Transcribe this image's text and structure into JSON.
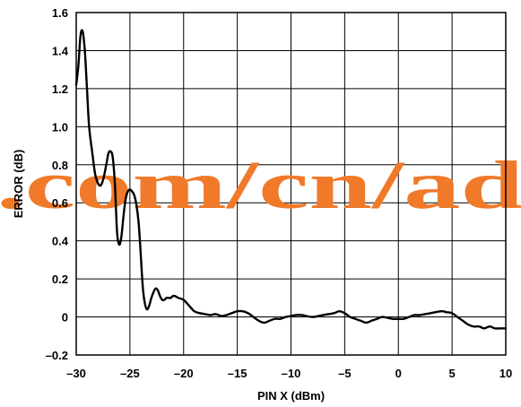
{
  "chart_data": {
    "type": "line",
    "xlabel": "PIN X (dBm)",
    "ylabel": "ERROR (dB)",
    "xlim": [
      -30,
      10
    ],
    "ylim": [
      -0.2,
      1.6
    ],
    "xticks": [
      -30,
      -25,
      -20,
      -15,
      -10,
      -5,
      0,
      5,
      10
    ],
    "xtick_labels": [
      "–30",
      "–25",
      "–20",
      "–15",
      "–10",
      "–5",
      "0",
      "5",
      "10"
    ],
    "yticks": [
      -0.2,
      0,
      0.2,
      0.4,
      0.6,
      0.8,
      1.0,
      1.2,
      1.4,
      1.6
    ],
    "ytick_labels": [
      "–0.2",
      "0",
      "0.2",
      "0.4",
      "0.6",
      "0.8",
      "1.0",
      "1.2",
      "1.4",
      "1.6"
    ],
    "grid": true,
    "series": [
      {
        "x": [
          -30,
          -29.8,
          -29.6,
          -29.4,
          -29.2,
          -29.0,
          -28.8,
          -28.5,
          -28.2,
          -27.8,
          -27.5,
          -27.2,
          -27.0,
          -26.8,
          -26.6,
          -26.4,
          -26.2,
          -26.0,
          -25.8,
          -25.6,
          -25.4,
          -25.2,
          -25.0,
          -24.8,
          -24.6,
          -24.4,
          -24.2,
          -24.0,
          -23.8,
          -23.6,
          -23.4,
          -23.2,
          -23.0,
          -22.8,
          -22.6,
          -22.4,
          -22.2,
          -22.0,
          -21.8,
          -21.6,
          -21.4,
          -21.2,
          -21.0,
          -20.8,
          -20.5,
          -20.0,
          -19.5,
          -19.0,
          -18.5,
          -18.0,
          -17.5,
          -17.0,
          -16.5,
          -16.0,
          -15.5,
          -15.0,
          -14.5,
          -14.0,
          -13.5,
          -13.0,
          -12.5,
          -12.0,
          -11.5,
          -11.0,
          -10.5,
          -10.0,
          -9.5,
          -9.0,
          -8.0,
          -7.0,
          -6.0,
          -5.5,
          -5.0,
          -4.5,
          -4.0,
          -3.5,
          -3.0,
          -2.5,
          -2.0,
          -1.5,
          -1.0,
          -0.5,
          0.0,
          0.5,
          1.0,
          1.5,
          2.0,
          3.0,
          4.0,
          4.5,
          5.0,
          5.5,
          6.0,
          6.5,
          7.0,
          7.5,
          8.0,
          8.5,
          9.0,
          9.5,
          10.0
        ],
        "y": [
          1.22,
          1.32,
          1.48,
          1.5,
          1.4,
          1.2,
          1.0,
          0.86,
          0.74,
          0.69,
          0.72,
          0.8,
          0.86,
          0.87,
          0.84,
          0.7,
          0.45,
          0.38,
          0.42,
          0.53,
          0.62,
          0.66,
          0.67,
          0.66,
          0.64,
          0.59,
          0.5,
          0.34,
          0.16,
          0.07,
          0.04,
          0.06,
          0.1,
          0.13,
          0.15,
          0.14,
          0.11,
          0.09,
          0.09,
          0.1,
          0.1,
          0.1,
          0.11,
          0.11,
          0.1,
          0.09,
          0.06,
          0.03,
          0.02,
          0.015,
          0.01,
          0.015,
          0.005,
          0.01,
          0.02,
          0.03,
          0.03,
          0.02,
          0.0,
          -0.02,
          -0.03,
          -0.02,
          -0.01,
          -0.01,
          0.0,
          0.005,
          0.01,
          0.01,
          0.0,
          0.01,
          0.02,
          0.03,
          0.02,
          0.0,
          -0.01,
          -0.02,
          -0.03,
          -0.02,
          -0.01,
          0.0,
          -0.005,
          -0.01,
          -0.01,
          -0.01,
          0.0,
          0.01,
          0.01,
          0.02,
          0.03,
          0.025,
          0.02,
          0.0,
          -0.02,
          -0.04,
          -0.05,
          -0.05,
          -0.06,
          -0.05,
          -0.06,
          -0.06,
          -0.06
        ]
      }
    ],
    "colors": {
      "line": "#000000",
      "watermark": "#f07a2a"
    }
  },
  "watermark": ".com/cn/ad"
}
